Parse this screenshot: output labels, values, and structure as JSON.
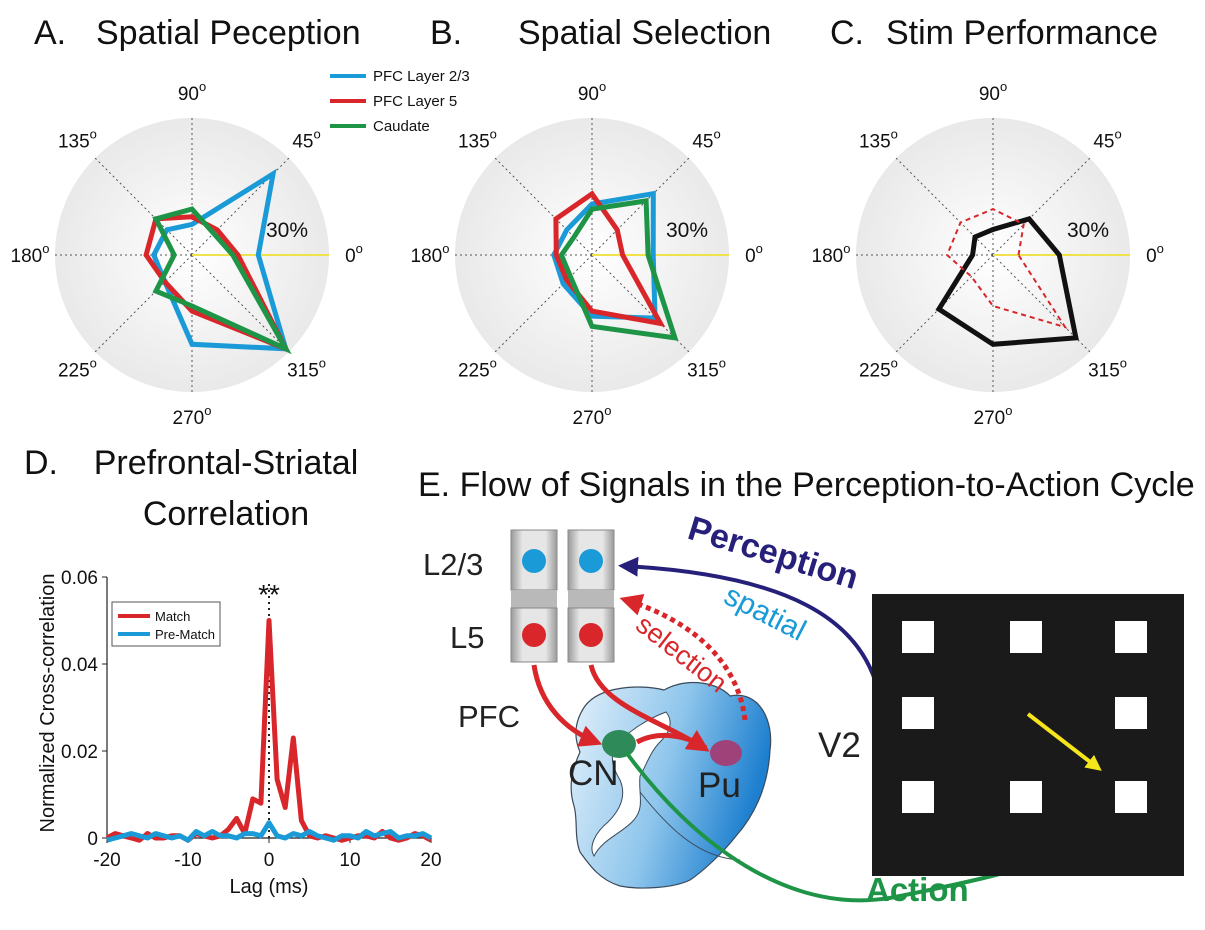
{
  "polar": {
    "angle_labels": [
      "0",
      "45",
      "90",
      "135",
      "180",
      "225",
      "270",
      "315"
    ],
    "degree_mark": "o",
    "reference_ring_label": "30%",
    "legend": [
      "PFC Layer 2/3",
      "PFC Layer 5",
      "Caudate"
    ],
    "colors": {
      "layer23": "#1a9ad6",
      "layer5": "#d8262a",
      "caudate": "#1e9447",
      "stim": "#111111",
      "ref": "#f0e24a"
    },
    "panels": [
      {
        "letter": "A.",
        "title": "Spatial Peception",
        "series": [
          {
            "name": "PFC Layer 2/3",
            "values": [
              26,
              45,
              12,
              14,
              15,
              15,
              35,
              52
            ]
          },
          {
            "name": "PFC Layer 5",
            "values": [
              18,
              14,
              15,
              20,
              18,
              15,
              22,
              52
            ]
          },
          {
            "name": "Caudate",
            "values": [
              16,
              12,
              18,
              20,
              7,
              20,
              20,
              52
            ]
          }
        ]
      },
      {
        "letter": "B.",
        "title": "Spatial Selection",
        "series": [
          {
            "name": "PFC Layer 2/3",
            "values": [
              24,
              34,
              20,
              14,
              15,
              16,
              24,
              35
            ]
          },
          {
            "name": "PFC Layer 5",
            "values": [
              12,
              14,
              24,
              20,
              14,
              14,
              22,
              38
            ]
          },
          {
            "name": "Caudate",
            "values": [
              22,
              30,
              18,
              10,
              12,
              12,
              28,
              46
            ]
          }
        ]
      },
      {
        "letter": "C.",
        "title": "Stim Performance",
        "series": [
          {
            "name": "Stim",
            "values": [
              26,
              20,
              10,
              10,
              8,
              30,
              35,
              46
            ]
          },
          {
            "name": "Stim dashed",
            "values": [
              10,
              17,
              18,
              18,
              18,
              12,
              20,
              40
            ]
          }
        ]
      }
    ]
  },
  "panel_d": {
    "letter": "D.",
    "title_lines": [
      "Prefrontal-Striatal",
      "Correlation"
    ],
    "significance": "**",
    "legend": [
      "Match",
      "Pre-Match"
    ],
    "chart_data": {
      "type": "line",
      "xlabel": "Lag (ms)",
      "ylabel": "Normalized Cross-correlation",
      "xlim": [
        -20,
        20
      ],
      "ylim": [
        0,
        0.06
      ],
      "x_ticks": [
        "-20",
        "-10",
        "0",
        "10",
        "20"
      ],
      "y_ticks": [
        "0",
        "0.02",
        "0.04",
        "0.06"
      ],
      "x": [
        -20,
        -19,
        -18,
        -17,
        -16,
        -15,
        -14,
        -13,
        -12,
        -11,
        -10,
        -9,
        -8,
        -7,
        -6,
        -5,
        -4,
        -3,
        -2,
        -1,
        0,
        1,
        2,
        3,
        4,
        5,
        6,
        7,
        8,
        9,
        10,
        11,
        12,
        13,
        14,
        15,
        16,
        17,
        18,
        19,
        20
      ],
      "series": [
        {
          "name": "Match",
          "color": "#d8262a",
          "values": [
            0,
            0.001,
            0.0005,
            0,
            -0.0005,
            0.001,
            0,
            0,
            0.0005,
            0.0005,
            -0.0005,
            0.001,
            0.0005,
            0,
            0.0005,
            0.002,
            0.0045,
            0.001,
            0.009,
            0.008,
            0.05,
            0.0135,
            0.007,
            0.023,
            0.004,
            0.0005,
            0,
            0.0005,
            0,
            -0.0005,
            0,
            0.0005,
            0.0005,
            0,
            0.0015,
            0,
            -0.0005,
            0,
            0.001,
            0.0005,
            -0.0005
          ]
        },
        {
          "name": "Pre-Match",
          "color": "#1a9ad6",
          "values": [
            -0.0005,
            0,
            0.0005,
            0.001,
            0.0005,
            0,
            0.001,
            0.0005,
            0,
            0.0005,
            -0.0005,
            0.0015,
            0.0005,
            0.0015,
            0.0005,
            0.0005,
            0,
            0.001,
            0.001,
            0.0005,
            0.0035,
            0.0005,
            0,
            0.001,
            0.0005,
            0.0015,
            0.0005,
            0,
            -0.0005,
            0.0005,
            0.0005,
            0,
            0.0015,
            0.0005,
            0.001,
            0.0015,
            0,
            0.0005,
            0.0005,
            0.001,
            0
          ]
        }
      ]
    }
  },
  "panel_e": {
    "title": "E. Flow of Signals in the Perception-to-Action Cycle",
    "labels": {
      "l23": "L2/3",
      "l5": "L5",
      "pfc": "PFC",
      "cn": "CN",
      "pu": "Pu",
      "v2": "V2",
      "perception": "Perception",
      "spatial": "spatial",
      "selection": "selection",
      "action": "Action"
    },
    "colors": {
      "perception": "#26207a",
      "spatial": "#1a9ad6",
      "selection": "#d8262a",
      "action": "#1e9447",
      "stimulus_arrow": "#f5e51b"
    }
  }
}
